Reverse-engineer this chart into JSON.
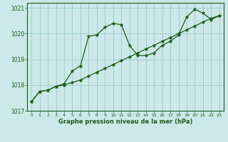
{
  "bg_color": "#cce8e8",
  "grid_color": "#99cccc",
  "line_color": "#1a5c1a",
  "marker": "*",
  "xlabel": "Graphe pression niveau de la mer (hPa)",
  "xlim": [
    -0.5,
    23.5
  ],
  "ylim": [
    1017.0,
    1021.2
  ],
  "yticks": [
    1017,
    1018,
    1019,
    1020,
    1021
  ],
  "xticks": [
    0,
    1,
    2,
    3,
    4,
    5,
    6,
    7,
    8,
    9,
    10,
    11,
    12,
    13,
    14,
    15,
    16,
    17,
    18,
    19,
    20,
    21,
    22,
    23
  ],
  "line1_x": [
    0,
    1,
    2,
    3,
    4,
    5,
    6,
    7,
    8,
    9,
    10,
    11,
    12,
    13,
    14,
    15,
    16,
    17,
    18,
    19,
    20,
    21,
    22,
    23
  ],
  "line1_y": [
    1017.35,
    1017.75,
    1017.8,
    1017.95,
    1018.0,
    1018.1,
    1018.2,
    1018.35,
    1018.5,
    1018.65,
    1018.8,
    1018.95,
    1019.1,
    1019.25,
    1019.4,
    1019.55,
    1019.7,
    1019.85,
    1020.0,
    1020.15,
    1020.3,
    1020.45,
    1020.6,
    1020.7
  ],
  "line2_x": [
    0,
    1,
    2,
    3,
    4,
    5,
    6,
    7,
    8,
    9,
    10,
    11,
    12,
    13,
    14,
    15,
    16,
    17,
    18,
    19,
    20,
    21,
    22,
    23
  ],
  "line2_y": [
    1017.35,
    1017.75,
    1017.8,
    1017.95,
    1018.05,
    1018.55,
    1018.75,
    1019.9,
    1019.95,
    1020.25,
    1020.4,
    1020.35,
    1019.55,
    1019.15,
    1019.15,
    1019.25,
    1019.55,
    1019.7,
    1019.95,
    1020.65,
    1020.95,
    1020.8,
    1020.55,
    1020.7
  ]
}
